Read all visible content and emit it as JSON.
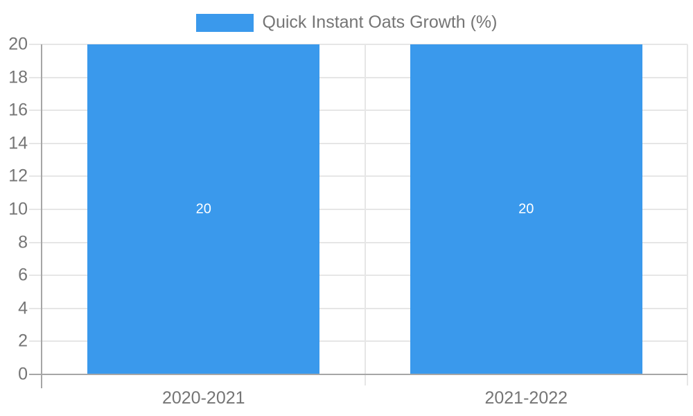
{
  "chart_data": {
    "type": "bar",
    "title": "",
    "legend": {
      "position": "top",
      "label": "Quick Instant Oats Growth (%)"
    },
    "categories": [
      "2020-2021",
      "2021-2022"
    ],
    "series": [
      {
        "name": "Quick Instant Oats Growth (%)",
        "values": [
          20,
          20
        ],
        "value_labels": [
          "20",
          "20"
        ],
        "color": "#3a99ec"
      }
    ],
    "ylim": [
      0,
      20
    ],
    "ytick_step": 2,
    "yticks": [
      0,
      2,
      4,
      6,
      8,
      10,
      12,
      14,
      16,
      18,
      20
    ],
    "xlabel": "",
    "ylabel": "",
    "grid": true,
    "bar_width_ratio": 0.72,
    "colors": {
      "bar": "#3a99ec",
      "gridline": "#e6e6e6",
      "axis_line": "#a6a6a6",
      "tick_label": "#757575",
      "value_label": "#ffffff",
      "background": "#ffffff"
    }
  }
}
